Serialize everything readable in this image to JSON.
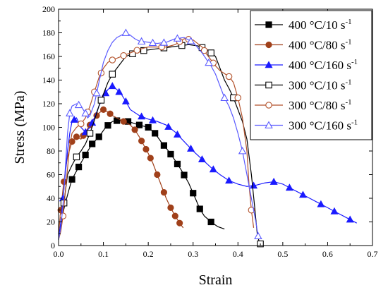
{
  "chart_data": {
    "type": "line",
    "title": "",
    "xlabel": "Strain",
    "ylabel": "Stress (MPa)",
    "xlim": [
      0,
      0.7
    ],
    "ylim": [
      0,
      200
    ],
    "x_ticks": [
      0.0,
      0.1,
      0.2,
      0.3,
      0.4,
      0.5,
      0.6,
      0.7
    ],
    "y_ticks": [
      0,
      20,
      40,
      60,
      80,
      100,
      120,
      140,
      160,
      180,
      200
    ],
    "x_tick_labels": [
      "0.0",
      "0.1",
      "0.2",
      "0.3",
      "0.4",
      "0.5",
      "0.6",
      "0.7"
    ],
    "y_tick_labels": [
      "0",
      "20",
      "40",
      "60",
      "80",
      "100",
      "120",
      "140",
      "160",
      "180",
      "200"
    ],
    "grid": false,
    "legend_position": "top-right",
    "series": [
      {
        "name": "400 °C/10 s",
        "name_sup": "-1",
        "marker": "filled-square",
        "color": "#000000",
        "points": [
          [
            0.0,
            8
          ],
          [
            0.005,
            18
          ],
          [
            0.01,
            28
          ],
          [
            0.016,
            37
          ],
          [
            0.023,
            47
          ],
          [
            0.03,
            56
          ],
          [
            0.04,
            63
          ],
          [
            0.05,
            70
          ],
          [
            0.062,
            78
          ],
          [
            0.075,
            86
          ],
          [
            0.09,
            92
          ],
          [
            0.105,
            100
          ],
          [
            0.12,
            105
          ],
          [
            0.135,
            106
          ],
          [
            0.155,
            105
          ],
          [
            0.18,
            102
          ],
          [
            0.2,
            100
          ],
          [
            0.215,
            95
          ],
          [
            0.23,
            87
          ],
          [
            0.245,
            80
          ],
          [
            0.26,
            72
          ],
          [
            0.275,
            63
          ],
          [
            0.29,
            53
          ],
          [
            0.305,
            40
          ],
          [
            0.315,
            31
          ],
          [
            0.325,
            25
          ],
          [
            0.34,
            20
          ],
          [
            0.355,
            16
          ],
          [
            0.37,
            14
          ]
        ],
        "marker_x": [
          0.03,
          0.045,
          0.06,
          0.075,
          0.09,
          0.11,
          0.13,
          0.155,
          0.18,
          0.2,
          0.215,
          0.235,
          0.25,
          0.265,
          0.28,
          0.3,
          0.315,
          0.34
        ]
      },
      {
        "name": "400 °C/80 s",
        "name_sup": "-1",
        "marker": "filled-circle",
        "color": "#a0401a",
        "points": [
          [
            0.0,
            10
          ],
          [
            0.005,
            30
          ],
          [
            0.01,
            48
          ],
          [
            0.015,
            63
          ],
          [
            0.02,
            75
          ],
          [
            0.03,
            88
          ],
          [
            0.04,
            92
          ],
          [
            0.05,
            90
          ],
          [
            0.06,
            96
          ],
          [
            0.07,
            102
          ],
          [
            0.08,
            108
          ],
          [
            0.09,
            112
          ],
          [
            0.1,
            115
          ],
          [
            0.11,
            113
          ],
          [
            0.12,
            110
          ],
          [
            0.13,
            108
          ],
          [
            0.145,
            105
          ],
          [
            0.16,
            102
          ],
          [
            0.17,
            98
          ],
          [
            0.18,
            92
          ],
          [
            0.19,
            85
          ],
          [
            0.2,
            78
          ],
          [
            0.21,
            70
          ],
          [
            0.22,
            60
          ],
          [
            0.23,
            50
          ],
          [
            0.24,
            40
          ],
          [
            0.25,
            32
          ],
          [
            0.26,
            25
          ],
          [
            0.27,
            19
          ],
          [
            0.278,
            15
          ]
        ],
        "marker_x": [
          0.005,
          0.012,
          0.03,
          0.04,
          0.055,
          0.07,
          0.085,
          0.1,
          0.115,
          0.145,
          0.17,
          0.185,
          0.195,
          0.205,
          0.22,
          0.235,
          0.25,
          0.26,
          0.27
        ]
      },
      {
        "name": "400 °C/160 s",
        "name_sup": "-1",
        "marker": "filled-triangle",
        "color": "#1a1aff",
        "points": [
          [
            0.0,
            5
          ],
          [
            0.005,
            20
          ],
          [
            0.01,
            40
          ],
          [
            0.015,
            60
          ],
          [
            0.02,
            80
          ],
          [
            0.025,
            95
          ],
          [
            0.03,
            105
          ],
          [
            0.04,
            108
          ],
          [
            0.05,
            100
          ],
          [
            0.06,
            96
          ],
          [
            0.07,
            100
          ],
          [
            0.08,
            108
          ],
          [
            0.09,
            118
          ],
          [
            0.1,
            126
          ],
          [
            0.11,
            132
          ],
          [
            0.12,
            135
          ],
          [
            0.13,
            132
          ],
          [
            0.14,
            128
          ],
          [
            0.15,
            122
          ],
          [
            0.16,
            115
          ],
          [
            0.18,
            110
          ],
          [
            0.2,
            107
          ],
          [
            0.22,
            105
          ],
          [
            0.24,
            102
          ],
          [
            0.26,
            96
          ],
          [
            0.28,
            88
          ],
          [
            0.3,
            80
          ],
          [
            0.32,
            73
          ],
          [
            0.34,
            66
          ],
          [
            0.36,
            60
          ],
          [
            0.38,
            55
          ],
          [
            0.4,
            52
          ],
          [
            0.42,
            50
          ],
          [
            0.44,
            51
          ],
          [
            0.46,
            53
          ],
          [
            0.48,
            54
          ],
          [
            0.5,
            52
          ],
          [
            0.52,
            48
          ],
          [
            0.54,
            44
          ],
          [
            0.56,
            40
          ],
          [
            0.58,
            36
          ],
          [
            0.6,
            32
          ],
          [
            0.62,
            28
          ],
          [
            0.64,
            24
          ],
          [
            0.665,
            19
          ]
        ],
        "marker_x": [
          0.01,
          0.035,
          0.06,
          0.075,
          0.105,
          0.12,
          0.135,
          0.15,
          0.185,
          0.21,
          0.245,
          0.265,
          0.295,
          0.32,
          0.345,
          0.38,
          0.435,
          0.48,
          0.515,
          0.545,
          0.585,
          0.615,
          0.65
        ]
      },
      {
        "name": "300 °C/10 s",
        "name_sup": "-1",
        "marker": "open-square",
        "color": "#000000",
        "points": [
          [
            0.0,
            5
          ],
          [
            0.005,
            15
          ],
          [
            0.01,
            30
          ],
          [
            0.015,
            45
          ],
          [
            0.02,
            60
          ],
          [
            0.03,
            68
          ],
          [
            0.04,
            75
          ],
          [
            0.05,
            80
          ],
          [
            0.06,
            86
          ],
          [
            0.07,
            95
          ],
          [
            0.08,
            106
          ],
          [
            0.09,
            118
          ],
          [
            0.1,
            128
          ],
          [
            0.11,
            138
          ],
          [
            0.12,
            145
          ],
          [
            0.13,
            150
          ],
          [
            0.14,
            155
          ],
          [
            0.15,
            160
          ],
          [
            0.17,
            163
          ],
          [
            0.19,
            165
          ],
          [
            0.21,
            166
          ],
          [
            0.23,
            167
          ],
          [
            0.25,
            168
          ],
          [
            0.27,
            169
          ],
          [
            0.29,
            170
          ],
          [
            0.31,
            169
          ],
          [
            0.33,
            166
          ],
          [
            0.35,
            160
          ],
          [
            0.36,
            150
          ],
          [
            0.37,
            140
          ],
          [
            0.38,
            133
          ],
          [
            0.39,
            125
          ],
          [
            0.4,
            115
          ],
          [
            0.41,
            105
          ],
          [
            0.42,
            90
          ],
          [
            0.43,
            60
          ],
          [
            0.438,
            30
          ],
          [
            0.443,
            10
          ],
          [
            0.448,
            2
          ],
          [
            0.455,
            0
          ]
        ],
        "marker_x": [
          0.012,
          0.04,
          0.07,
          0.095,
          0.12,
          0.165,
          0.19,
          0.235,
          0.275,
          0.32,
          0.34,
          0.39,
          0.45
        ]
      },
      {
        "name": "300 °C/80 s",
        "name_sup": "-1",
        "marker": "open-circle",
        "color": "#b2512a",
        "points": [
          [
            0.0,
            5
          ],
          [
            0.005,
            12
          ],
          [
            0.01,
            25
          ],
          [
            0.015,
            45
          ],
          [
            0.02,
            65
          ],
          [
            0.025,
            85
          ],
          [
            0.03,
            95
          ],
          [
            0.04,
            100
          ],
          [
            0.05,
            103
          ],
          [
            0.06,
            108
          ],
          [
            0.07,
            118
          ],
          [
            0.08,
            130
          ],
          [
            0.09,
            142
          ],
          [
            0.1,
            150
          ],
          [
            0.11,
            155
          ],
          [
            0.12,
            157
          ],
          [
            0.14,
            160
          ],
          [
            0.16,
            163
          ],
          [
            0.18,
            166
          ],
          [
            0.2,
            168
          ],
          [
            0.22,
            168
          ],
          [
            0.24,
            168
          ],
          [
            0.26,
            170
          ],
          [
            0.28,
            175
          ],
          [
            0.3,
            174
          ],
          [
            0.32,
            168
          ],
          [
            0.33,
            162
          ],
          [
            0.34,
            157
          ],
          [
            0.35,
            152
          ],
          [
            0.36,
            148
          ],
          [
            0.38,
            143
          ],
          [
            0.39,
            138
          ],
          [
            0.4,
            125
          ],
          [
            0.41,
            108
          ],
          [
            0.42,
            80
          ],
          [
            0.425,
            50
          ],
          [
            0.43,
            30
          ],
          [
            0.435,
            15
          ]
        ],
        "marker_x": [
          0.01,
          0.05,
          0.065,
          0.08,
          0.095,
          0.12,
          0.145,
          0.175,
          0.23,
          0.27,
          0.29,
          0.325,
          0.345,
          0.38,
          0.4,
          0.43
        ]
      },
      {
        "name": "300 °C/160 s",
        "name_sup": "-1",
        "marker": "open-triangle",
        "color": "#5a5aff",
        "points": [
          [
            0.0,
            5
          ],
          [
            0.005,
            15
          ],
          [
            0.01,
            35
          ],
          [
            0.015,
            65
          ],
          [
            0.02,
            95
          ],
          [
            0.025,
            112
          ],
          [
            0.03,
            118
          ],
          [
            0.04,
            120
          ],
          [
            0.05,
            118
          ],
          [
            0.06,
            112
          ],
          [
            0.065,
            108
          ],
          [
            0.07,
            110
          ],
          [
            0.08,
            120
          ],
          [
            0.09,
            138
          ],
          [
            0.1,
            155
          ],
          [
            0.11,
            165
          ],
          [
            0.12,
            172
          ],
          [
            0.13,
            176
          ],
          [
            0.14,
            178
          ],
          [
            0.15,
            180
          ],
          [
            0.16,
            178
          ],
          [
            0.17,
            175
          ],
          [
            0.18,
            173
          ],
          [
            0.2,
            172
          ],
          [
            0.22,
            171
          ],
          [
            0.24,
            172
          ],
          [
            0.26,
            175
          ],
          [
            0.28,
            176
          ],
          [
            0.3,
            172
          ],
          [
            0.32,
            163
          ],
          [
            0.34,
            152
          ],
          [
            0.35,
            145
          ],
          [
            0.36,
            135
          ],
          [
            0.37,
            125
          ],
          [
            0.38,
            118
          ],
          [
            0.39,
            108
          ],
          [
            0.4,
            95
          ],
          [
            0.41,
            80
          ],
          [
            0.42,
            60
          ],
          [
            0.43,
            40
          ],
          [
            0.44,
            20
          ],
          [
            0.445,
            8
          ]
        ],
        "marker_x": [
          0.025,
          0.045,
          0.06,
          0.085,
          0.15,
          0.185,
          0.21,
          0.235,
          0.265,
          0.295,
          0.335,
          0.37,
          0.41,
          0.445
        ]
      }
    ]
  }
}
